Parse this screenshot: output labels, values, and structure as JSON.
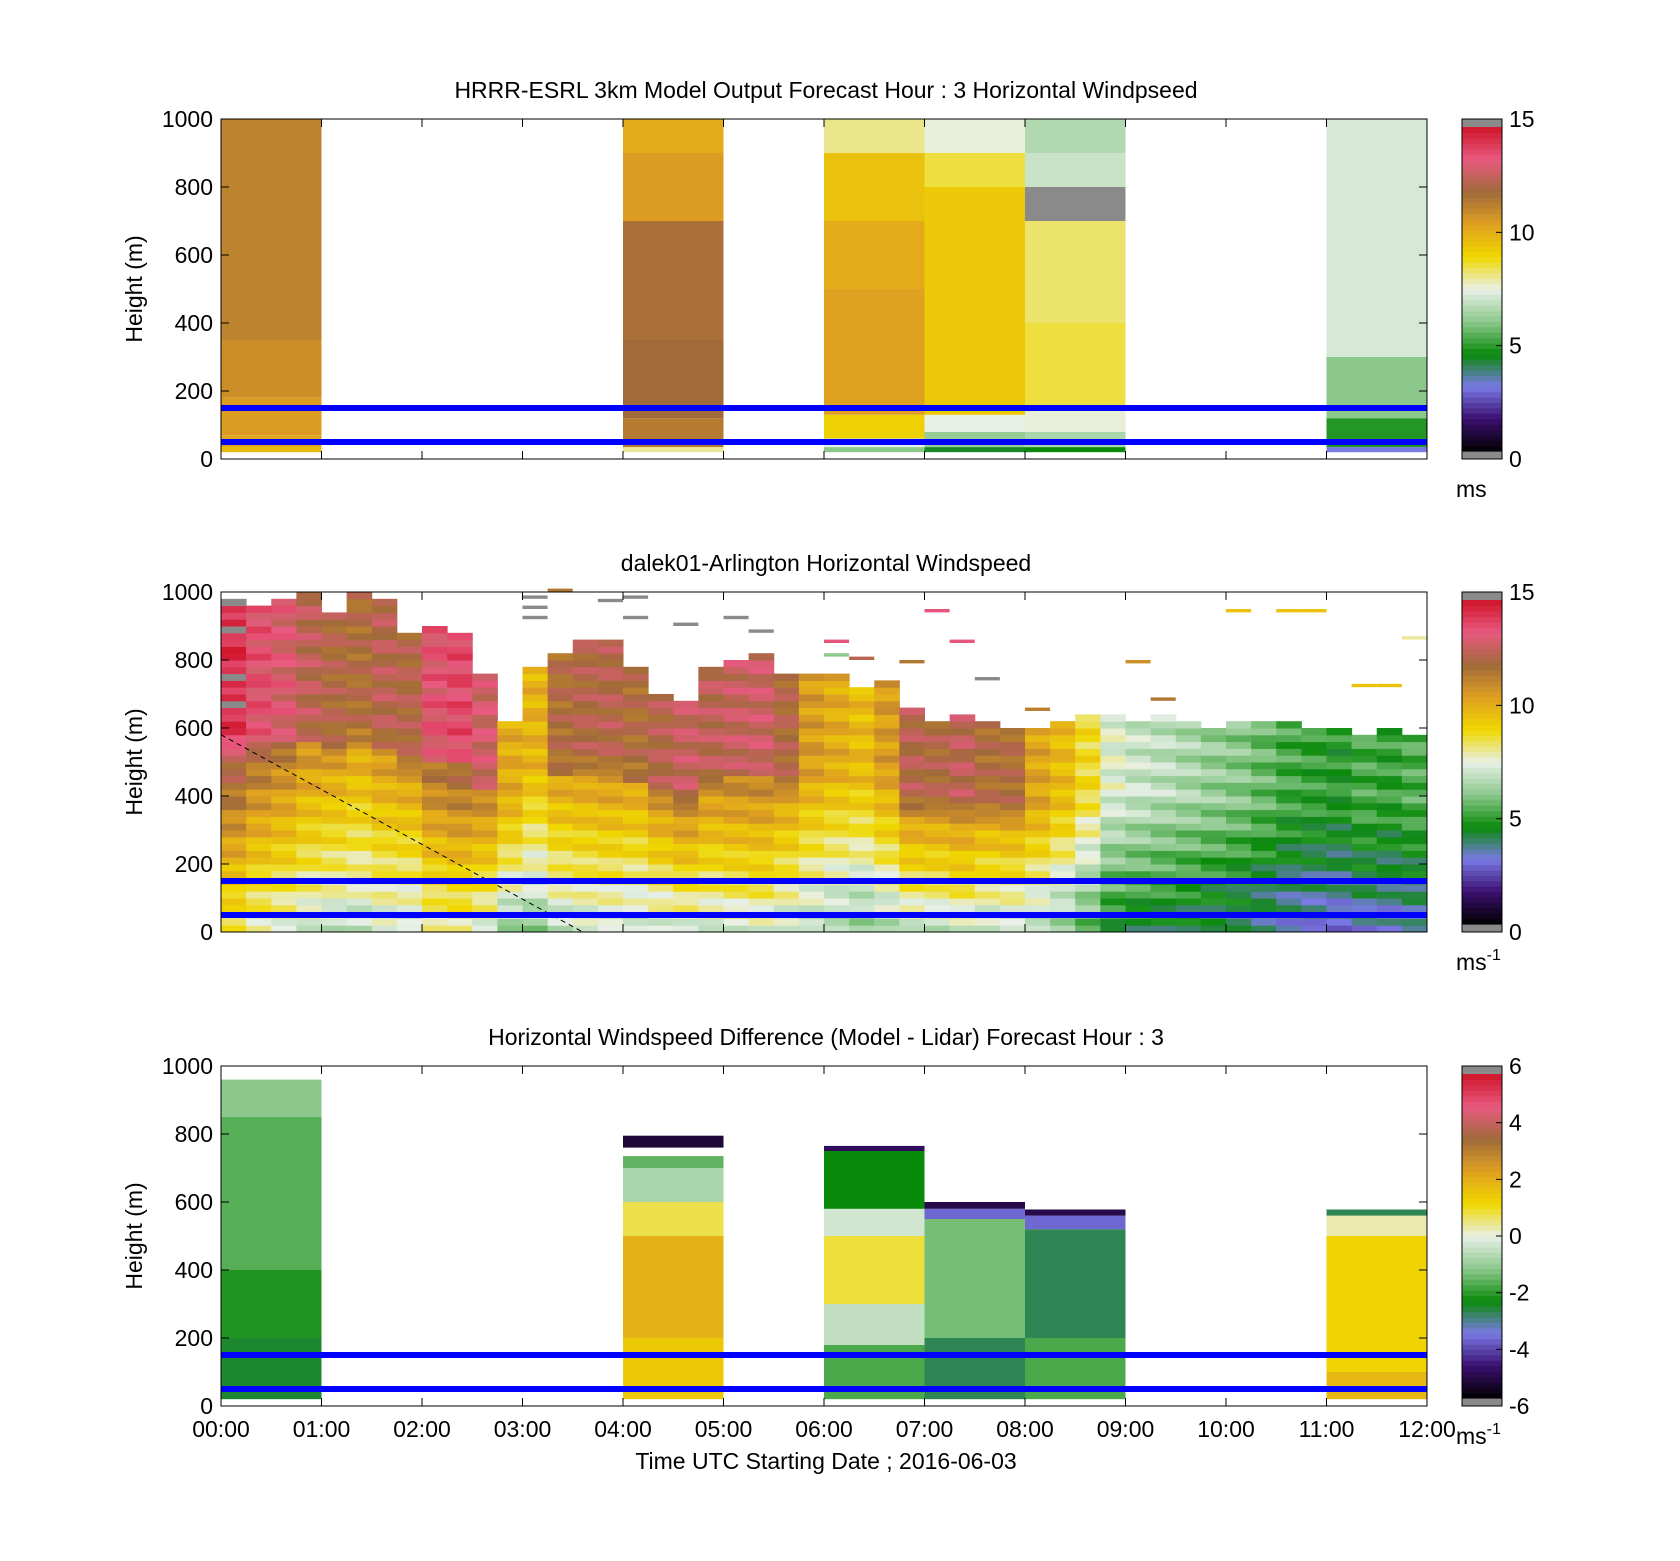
{
  "chart_data": [
    {
      "type": "heatmap",
      "title": "HRRR-ESRL 3km Model Output   Forecast Hour : 3 Horizontal Windpseed",
      "ylabel": "Height (m)",
      "xlabel": "",
      "ylim": [
        0,
        1000
      ],
      "yticks": [
        "0",
        "200",
        "400",
        "600",
        "800",
        "1000"
      ],
      "xlim_hours": [
        0,
        12
      ],
      "colorbar": {
        "min": 0,
        "max": 15,
        "ticks": [
          "0",
          "5",
          "10",
          "15"
        ],
        "unit": "ms",
        "unit_sup": ""
      },
      "reference_heights_m": [
        150,
        50
      ],
      "reference_color": "#0000ff",
      "columns": [
        {
          "t0": 0,
          "t1": 1,
          "bands": [
            {
              "y0": 20,
              "y1": 35,
              "v": 9.8
            },
            {
              "y0": 35,
              "y1": 70,
              "v": 10.3
            },
            {
              "y0": 70,
              "y1": 180,
              "v": 10.6
            },
            {
              "y0": 180,
              "y1": 350,
              "v": 11.0
            },
            {
              "y0": 350,
              "y1": 1000,
              "v": 11.3
            }
          ]
        },
        {
          "t0": 4,
          "t1": 5,
          "bands": [
            {
              "y0": 20,
              "y1": 35,
              "v": 8.0
            },
            {
              "y0": 35,
              "y1": 120,
              "v": 11.5
            },
            {
              "y0": 120,
              "y1": 350,
              "v": 12.0
            },
            {
              "y0": 350,
              "y1": 700,
              "v": 11.8
            },
            {
              "y0": 700,
              "y1": 900,
              "v": 10.6
            },
            {
              "y0": 900,
              "y1": 1000,
              "v": 10.2
            }
          ]
        },
        {
          "t0": 6,
          "t1": 7,
          "bands": [
            {
              "y0": 20,
              "y1": 35,
              "v": 6.0
            },
            {
              "y0": 35,
              "y1": 60,
              "v": 7.5
            },
            {
              "y0": 60,
              "y1": 130,
              "v": 9.2
            },
            {
              "y0": 130,
              "y1": 500,
              "v": 10.5
            },
            {
              "y0": 500,
              "y1": 700,
              "v": 10.2
            },
            {
              "y0": 700,
              "y1": 900,
              "v": 9.6
            },
            {
              "y0": 900,
              "y1": 1000,
              "v": 8.1
            }
          ]
        },
        {
          "t0": 7,
          "t1": 8,
          "bands": [
            {
              "y0": 20,
              "y1": 35,
              "v": 4.3
            },
            {
              "y0": 35,
              "y1": 80,
              "v": 6.2
            },
            {
              "y0": 80,
              "y1": 130,
              "v": 7.5
            },
            {
              "y0": 130,
              "y1": 800,
              "v": 9.4
            },
            {
              "y0": 800,
              "y1": 900,
              "v": 8.6
            },
            {
              "y0": 900,
              "y1": 1000,
              "v": 7.6
            }
          ]
        },
        {
          "t0": 8,
          "t1": 9,
          "bands": [
            {
              "y0": 20,
              "y1": 35,
              "v": 4.5
            },
            {
              "y0": 35,
              "y1": 80,
              "v": 6.5
            },
            {
              "y0": 80,
              "y1": 150,
              "v": 7.6
            },
            {
              "y0": 150,
              "y1": 400,
              "v": 8.6
            },
            {
              "y0": 400,
              "y1": 700,
              "v": 8.3
            },
            {
              "y0": 700,
              "y1": 800,
              "v": 15.5
            },
            {
              "y0": 800,
              "y1": 900,
              "v": 7.0
            },
            {
              "y0": 900,
              "y1": 1000,
              "v": 6.6
            }
          ]
        },
        {
          "t0": 11,
          "t1": 12,
          "bands": [
            {
              "y0": 20,
              "y1": 35,
              "v": 3.0
            },
            {
              "y0": 35,
              "y1": 120,
              "v": 4.8
            },
            {
              "y0": 120,
              "y1": 300,
              "v": 6.0
            },
            {
              "y0": 300,
              "y1": 1000,
              "v": 7.2
            }
          ]
        }
      ]
    },
    {
      "type": "heatmap",
      "title": "dalek01-Arlington  Horizontal Windspeed",
      "ylabel": "Height (m)",
      "xlabel": "",
      "ylim": [
        0,
        1000
      ],
      "yticks": [
        "0",
        "200",
        "400",
        "600",
        "800",
        "1000"
      ],
      "xlim_hours": [
        0,
        12
      ],
      "colorbar": {
        "min": 0,
        "max": 15,
        "ticks": [
          "0",
          "5",
          "10",
          "15"
        ],
        "unit": "ms",
        "unit_sup": "-1"
      },
      "reference_heights_m": [
        150,
        50
      ],
      "reference_color": "#0000ff",
      "dashed_line": {
        "from": [
          0,
          580
        ],
        "to": [
          3.6,
          0
        ]
      },
      "column_width_hours": 0.25,
      "profiles": [
        {
          "t": 0.0,
          "top": 980,
          "v": 13.5
        },
        {
          "t": 0.25,
          "top": 960,
          "v": 12.6
        },
        {
          "t": 0.5,
          "top": 975,
          "v": 12.2
        },
        {
          "t": 0.75,
          "top": 1000,
          "v": 11.6
        },
        {
          "t": 1.0,
          "top": 940,
          "v": 11.2
        },
        {
          "t": 1.25,
          "top": 1000,
          "v": 11.0
        },
        {
          "t": 1.5,
          "top": 980,
          "v": 11.5
        },
        {
          "t": 1.75,
          "top": 870,
          "v": 11.3
        },
        {
          "t": 2.0,
          "top": 900,
          "v": 12.5
        },
        {
          "t": 2.25,
          "top": 880,
          "v": 12.8
        },
        {
          "t": 2.5,
          "top": 750,
          "v": 12.0
        },
        {
          "t": 2.75,
          "top": 620,
          "v": 10.2
        },
        {
          "t": 3.0,
          "top": 780,
          "v": 10.0
        },
        {
          "t": 3.25,
          "top": 820,
          "v": 11.0
        },
        {
          "t": 3.5,
          "top": 860,
          "v": 11.3
        },
        {
          "t": 3.75,
          "top": 850,
          "v": 11.4
        },
        {
          "t": 4.0,
          "top": 780,
          "v": 11.0
        },
        {
          "t": 4.25,
          "top": 700,
          "v": 11.4
        },
        {
          "t": 4.5,
          "top": 680,
          "v": 11.8
        },
        {
          "t": 4.75,
          "top": 780,
          "v": 11.6
        },
        {
          "t": 5.0,
          "top": 800,
          "v": 11.8
        },
        {
          "t": 5.25,
          "top": 810,
          "v": 11.9
        },
        {
          "t": 5.5,
          "top": 750,
          "v": 11.2
        },
        {
          "t": 5.75,
          "top": 760,
          "v": 10.6
        },
        {
          "t": 6.0,
          "top": 760,
          "v": 10.2
        },
        {
          "t": 6.25,
          "top": 720,
          "v": 9.8
        },
        {
          "t": 6.5,
          "top": 740,
          "v": 10.6
        },
        {
          "t": 6.75,
          "top": 650,
          "v": 11.4
        },
        {
          "t": 7.0,
          "top": 620,
          "v": 11.2
        },
        {
          "t": 7.25,
          "top": 640,
          "v": 11.6
        },
        {
          "t": 7.5,
          "top": 610,
          "v": 11.0
        },
        {
          "t": 7.75,
          "top": 590,
          "v": 11.0
        },
        {
          "t": 8.0,
          "top": 590,
          "v": 10.4
        },
        {
          "t": 8.25,
          "top": 620,
          "v": 9.8
        },
        {
          "t": 8.5,
          "top": 640,
          "v": 8.8
        },
        {
          "t": 8.75,
          "top": 640,
          "v": 7.4
        },
        {
          "t": 9.0,
          "top": 620,
          "v": 7.0
        },
        {
          "t": 9.25,
          "top": 640,
          "v": 6.8
        },
        {
          "t": 9.5,
          "top": 620,
          "v": 6.5
        },
        {
          "t": 9.75,
          "top": 600,
          "v": 6.2
        },
        {
          "t": 10.0,
          "top": 620,
          "v": 6.0
        },
        {
          "t": 10.25,
          "top": 610,
          "v": 5.6
        },
        {
          "t": 10.5,
          "top": 620,
          "v": 5.2
        },
        {
          "t": 10.75,
          "top": 600,
          "v": 5.0
        },
        {
          "t": 11.0,
          "top": 600,
          "v": 4.8
        },
        {
          "t": 11.25,
          "top": 580,
          "v": 5.2
        },
        {
          "t": 11.5,
          "top": 590,
          "v": 5.0
        },
        {
          "t": 11.75,
          "top": 580,
          "v": 5.3
        }
      ],
      "isolated_cells": [
        {
          "t": 3.0,
          "h": 980,
          "v": 15.5
        },
        {
          "t": 3.0,
          "h": 950,
          "v": 15.5
        },
        {
          "t": 3.0,
          "h": 920,
          "v": 15.5
        },
        {
          "t": 3.25,
          "h": 1000,
          "v": 11.6
        },
        {
          "t": 3.75,
          "h": 970,
          "v": 15.5
        },
        {
          "t": 4.0,
          "h": 980,
          "v": 15.5
        },
        {
          "t": 4.0,
          "h": 920,
          "v": 15.5
        },
        {
          "t": 4.5,
          "h": 900,
          "v": 15.5
        },
        {
          "t": 5.0,
          "h": 920,
          "v": 15.5
        },
        {
          "t": 5.25,
          "h": 880,
          "v": 15.5
        },
        {
          "t": 6.0,
          "h": 810,
          "v": 6.0
        },
        {
          "t": 6.0,
          "h": 850,
          "v": 13.6
        },
        {
          "t": 6.25,
          "h": 800,
          "v": 12.5
        },
        {
          "t": 6.75,
          "h": 790,
          "v": 11.6
        },
        {
          "t": 7.0,
          "h": 940,
          "v": 13.6
        },
        {
          "t": 7.25,
          "h": 850,
          "v": 13.6
        },
        {
          "t": 7.5,
          "h": 740,
          "v": 15.5
        },
        {
          "t": 8.0,
          "h": 650,
          "v": 11.4
        },
        {
          "t": 9.0,
          "h": 790,
          "v": 11.0
        },
        {
          "t": 9.25,
          "h": 680,
          "v": 11.6
        },
        {
          "t": 10.0,
          "h": 940,
          "v": 9.6
        },
        {
          "t": 10.5,
          "h": 940,
          "v": 9.6
        },
        {
          "t": 10.75,
          "h": 940,
          "v": 9.6
        },
        {
          "t": 11.25,
          "h": 720,
          "v": 9.6
        },
        {
          "t": 11.5,
          "h": 720,
          "v": 9.6
        },
        {
          "t": 11.75,
          "h": 860,
          "v": 8.0
        }
      ]
    },
    {
      "type": "heatmap",
      "title": "Horizontal Windspeed Difference (Model - Lidar) Forecast Hour : 3",
      "ylabel": "Height (m)",
      "xlabel": "Time UTC  Starting Date ; 2016-06-03",
      "ylim": [
        0,
        1000
      ],
      "yticks": [
        "0",
        "200",
        "400",
        "600",
        "800",
        "1000"
      ],
      "xticks": [
        "00:00",
        "01:00",
        "02:00",
        "03:00",
        "04:00",
        "05:00",
        "06:00",
        "07:00",
        "08:00",
        "09:00",
        "10:00",
        "11:00",
        "12:00"
      ],
      "xlim_hours": [
        0,
        12
      ],
      "colorbar": {
        "min": -6,
        "max": 6,
        "ticks": [
          "-6",
          "-4",
          "-2",
          "0",
          "2",
          "4",
          "6"
        ],
        "unit": "ms",
        "unit_sup": "-1"
      },
      "reference_heights_m": [
        150,
        50
      ],
      "reference_color": "#0000ff",
      "columns": [
        {
          "t0": 0,
          "t1": 1,
          "bands": [
            {
              "y0": 20,
              "y1": 200,
              "v": -2.6
            },
            {
              "y0": 200,
              "y1": 400,
              "v": -2.2
            },
            {
              "y0": 400,
              "y1": 850,
              "v": -1.7
            },
            {
              "y0": 850,
              "y1": 960,
              "v": -1.2
            }
          ]
        },
        {
          "t0": 4,
          "t1": 5,
          "bands": [
            {
              "y0": 20,
              "y1": 200,
              "v": 1.5
            },
            {
              "y0": 200,
              "y1": 500,
              "v": 2.0
            },
            {
              "y0": 500,
              "y1": 600,
              "v": 0.8
            },
            {
              "y0": 600,
              "y1": 700,
              "v": -0.8
            },
            {
              "y0": 700,
              "y1": 735,
              "v": -1.6
            },
            {
              "y0": 760,
              "y1": 795,
              "v": -5.4
            }
          ]
        },
        {
          "t0": 6,
          "t1": 7,
          "bands": [
            {
              "y0": 20,
              "y1": 180,
              "v": -1.8
            },
            {
              "y0": 180,
              "y1": 300,
              "v": -0.5
            },
            {
              "y0": 300,
              "y1": 500,
              "v": 0.9
            },
            {
              "y0": 500,
              "y1": 580,
              "v": -0.3
            },
            {
              "y0": 580,
              "y1": 750,
              "v": -2.4
            },
            {
              "y0": 750,
              "y1": 765,
              "v": -5.0
            }
          ]
        },
        {
          "t0": 7,
          "t1": 8,
          "bands": [
            {
              "y0": 20,
              "y1": 200,
              "v": -2.8
            },
            {
              "y0": 200,
              "y1": 550,
              "v": -1.4
            },
            {
              "y0": 550,
              "y1": 580,
              "v": -3.8
            },
            {
              "y0": 580,
              "y1": 600,
              "v": -5.2
            }
          ]
        },
        {
          "t0": 8,
          "t1": 9,
          "bands": [
            {
              "y0": 20,
              "y1": 200,
              "v": -1.8
            },
            {
              "y0": 200,
              "y1": 520,
              "v": -2.8
            },
            {
              "y0": 520,
              "y1": 560,
              "v": -3.8
            },
            {
              "y0": 560,
              "y1": 578,
              "v": -5.2
            }
          ]
        },
        {
          "t0": 11,
          "t1": 12,
          "bands": [
            {
              "y0": 20,
              "y1": 100,
              "v": 1.9
            },
            {
              "y0": 100,
              "y1": 500,
              "v": 1.3
            },
            {
              "y0": 500,
              "y1": 560,
              "v": 0.3
            },
            {
              "y0": 560,
              "y1": 578,
              "v": -2.8
            }
          ]
        }
      ]
    }
  ],
  "colormap_stops": [
    "#000000",
    "#3b0f6f",
    "#7a7ae6",
    "#0a8a0a",
    "#8cc88c",
    "#e8f0e8",
    "#f0d800",
    "#e0a020",
    "#a06a3a",
    "#e85a80",
    "#d0142a"
  ],
  "out_of_range_color": "#8a8a8a"
}
